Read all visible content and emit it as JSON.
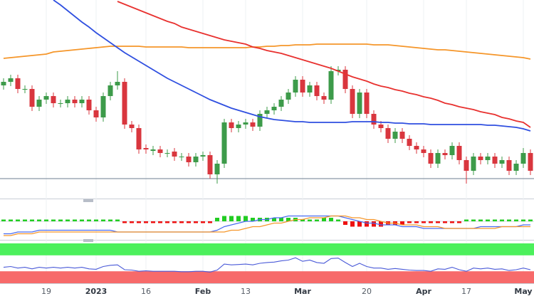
{
  "chart_data": {
    "type": "candlestick",
    "categories": [
      null,
      null,
      null,
      null,
      null,
      null,
      "19",
      null,
      null,
      null,
      null,
      null,
      null,
      "2023",
      null,
      null,
      null,
      null,
      null,
      null,
      "16",
      null,
      null,
      null,
      null,
      null,
      null,
      null,
      "Feb",
      null,
      null,
      null,
      null,
      null,
      "13",
      null,
      null,
      null,
      null,
      null,
      null,
      null,
      "Mar",
      null,
      null,
      null,
      null,
      null,
      null,
      null,
      null,
      "20",
      null,
      null,
      null,
      null,
      null,
      null,
      null,
      "Apr",
      null,
      null,
      null,
      null,
      null,
      "17",
      null,
      null,
      null,
      null,
      null,
      null,
      null,
      "May",
      null
    ],
    "open": [
      158,
      163,
      168,
      153,
      153,
      128,
      138,
      143,
      133,
      133,
      138,
      133,
      138,
      123,
      113,
      143,
      158,
      163,
      103,
      98,
      70,
      66,
      68,
      63,
      65,
      58,
      58,
      50,
      58,
      60,
      33,
      48,
      106,
      98,
      103,
      106,
      100,
      118,
      123,
      128,
      138,
      148,
      166,
      148,
      158,
      143,
      138,
      178,
      180,
      153,
      118,
      148,
      118,
      103,
      98,
      83,
      93,
      83,
      73,
      68,
      63,
      48,
      63,
      60,
      73,
      53,
      38,
      58,
      53,
      58,
      48,
      53,
      38,
      48,
      63
    ],
    "high": [
      168,
      173,
      173,
      158,
      158,
      143,
      148,
      148,
      138,
      143,
      143,
      143,
      143,
      128,
      148,
      163,
      178,
      168,
      108,
      103,
      75,
      73,
      73,
      68,
      70,
      63,
      63,
      63,
      65,
      65,
      53,
      111,
      111,
      108,
      111,
      111,
      123,
      128,
      133,
      143,
      153,
      171,
      171,
      163,
      163,
      148,
      185,
      185,
      185,
      158,
      153,
      153,
      123,
      108,
      103,
      98,
      98,
      88,
      78,
      73,
      68,
      68,
      68,
      78,
      78,
      58,
      63,
      63,
      63,
      63,
      58,
      58,
      53,
      70,
      68
    ],
    "low": [
      152,
      157,
      147,
      147,
      122,
      122,
      132,
      127,
      127,
      127,
      127,
      127,
      117,
      107,
      107,
      137,
      152,
      97,
      92,
      62,
      62,
      60,
      57,
      57,
      52,
      52,
      44,
      44,
      52,
      27,
      20,
      42,
      92,
      92,
      97,
      94,
      94,
      112,
      117,
      122,
      132,
      142,
      142,
      142,
      137,
      132,
      132,
      172,
      147,
      112,
      112,
      112,
      97,
      92,
      77,
      77,
      77,
      67,
      62,
      57,
      42,
      42,
      54,
      54,
      47,
      20,
      32,
      47,
      47,
      42,
      42,
      32,
      32,
      42,
      32
    ],
    "close": [
      163,
      168,
      153,
      153,
      128,
      138,
      143,
      133,
      133,
      138,
      133,
      138,
      123,
      113,
      143,
      158,
      163,
      103,
      98,
      68,
      68,
      68,
      63,
      63,
      58,
      58,
      50,
      58,
      60,
      33,
      48,
      106,
      98,
      103,
      106,
      100,
      118,
      123,
      128,
      138,
      148,
      166,
      148,
      158,
      143,
      138,
      178,
      180,
      153,
      118,
      148,
      118,
      103,
      98,
      83,
      93,
      83,
      73,
      68,
      63,
      48,
      63,
      60,
      73,
      53,
      38,
      58,
      53,
      58,
      48,
      53,
      38,
      48,
      63,
      38
    ],
    "up_color": "#3d9b4a",
    "down_color": "#d9363e",
    "ylim": [
      0,
      278
    ],
    "hline": 27,
    "hline_color": "#8a97a6",
    "lines": [
      {
        "color": "#f5962a",
        "values": [
          196,
          197,
          198,
          199,
          200,
          201,
          202,
          205,
          206,
          207,
          208,
          209,
          210,
          211,
          212,
          213,
          213,
          213,
          213,
          213,
          212,
          212,
          212,
          212,
          212,
          212,
          211,
          211,
          211,
          211,
          211,
          211,
          211,
          211,
          211,
          212,
          212,
          213,
          213,
          214,
          214,
          215,
          215,
          215,
          216,
          216,
          216,
          216,
          216,
          216,
          216,
          216,
          215,
          215,
          215,
          214,
          213,
          212,
          211,
          210,
          209,
          208,
          208,
          207,
          206,
          205,
          204,
          203,
          202,
          201,
          200,
          199,
          198,
          197,
          195
        ]
      },
      {
        "color": "#e8312f",
        "values": [
          null,
          null,
          null,
          null,
          null,
          null,
          null,
          null,
          null,
          null,
          null,
          null,
          null,
          null,
          null,
          null,
          276,
          272,
          268,
          264,
          260,
          256,
          252,
          248,
          245,
          240,
          237,
          234,
          231,
          228,
          225,
          222,
          220,
          218,
          216,
          212,
          210,
          207,
          205,
          203,
          200,
          197,
          194,
          191,
          188,
          185,
          182,
          178,
          174,
          170,
          167,
          164,
          160,
          157,
          155,
          152,
          150,
          147,
          145,
          142,
          140,
          137,
          133,
          131,
          128,
          126,
          124,
          121,
          119,
          117,
          113,
          111,
          108,
          106,
          99
        ]
      },
      {
        "color": "#2f4fe0",
        "values": [
          null,
          null,
          null,
          null,
          null,
          null,
          null,
          278,
          271,
          263,
          255,
          247,
          240,
          232,
          225,
          218,
          211,
          204,
          198,
          192,
          186,
          180,
          174,
          168,
          163,
          158,
          153,
          148,
          143,
          138,
          134,
          130,
          126,
          123,
          120,
          117,
          114,
          112,
          110,
          109,
          108,
          107,
          107,
          106,
          106,
          106,
          106,
          106,
          106,
          107,
          107,
          107,
          107,
          106,
          106,
          105,
          105,
          104,
          104,
          104,
          103,
          103,
          103,
          103,
          103,
          103,
          103,
          103,
          102,
          102,
          101,
          100,
          99,
          97,
          94
        ]
      }
    ],
    "macd": {
      "ylim": [
        -10,
        10
      ],
      "histogram": [
        1,
        1,
        1,
        1,
        1,
        1,
        1,
        1,
        1,
        1,
        1,
        1,
        1,
        1,
        1,
        1,
        1,
        -1,
        -1,
        -1,
        -1,
        -1,
        -1,
        -1,
        -1,
        -1,
        -1,
        -1,
        -1,
        -1,
        2,
        3,
        3,
        3,
        3,
        2,
        2,
        2,
        2,
        2,
        2,
        2,
        1,
        1,
        1,
        2,
        2,
        1,
        -2,
        -3,
        -3,
        -3,
        -3,
        -3,
        -2,
        -2,
        -2,
        -1,
        -1,
        -1,
        -1,
        -1,
        -1,
        -1,
        -1,
        1,
        1,
        1,
        1,
        1,
        1,
        1,
        1,
        1,
        1
      ],
      "up_color": "#22cc22",
      "down_color": "#ee1111",
      "lines": [
        {
          "color": "#4a6cf0",
          "values": [
            -7,
            -7,
            -6,
            -6,
            -6,
            -5,
            -5,
            -5,
            -5,
            -5,
            -5,
            -5,
            -5,
            -5,
            -5,
            -5,
            -6,
            -6,
            -6,
            -6,
            -6,
            -6,
            -6,
            -6,
            -6,
            -6,
            -6,
            -6,
            -6,
            -6,
            -5,
            -3,
            -2,
            -1,
            0,
            0,
            1,
            1,
            2,
            2,
            3,
            3,
            3,
            3,
            3,
            3,
            3,
            3,
            2,
            1,
            0,
            -1,
            -1,
            -2,
            -2,
            -2,
            -3,
            -3,
            -3,
            -4,
            -4,
            -4,
            -4,
            -4,
            -4,
            -4,
            -4,
            -3,
            -3,
            -3,
            -3,
            -3,
            -3,
            -2,
            -2
          ]
        },
        {
          "color": "#f5962a",
          "values": [
            -8,
            -8,
            -7,
            -7,
            -7,
            -6,
            -6,
            -6,
            -6,
            -6,
            -6,
            -6,
            -6,
            -6,
            -6,
            -6,
            -6,
            -6,
            -6,
            -6,
            -6,
            -6,
            -6,
            -6,
            -6,
            -6,
            -6,
            -6,
            -6,
            -6,
            -6,
            -6,
            -5,
            -5,
            -4,
            -3,
            -3,
            -2,
            -1,
            -1,
            0,
            1,
            1,
            2,
            2,
            2,
            3,
            3,
            3,
            2,
            2,
            1,
            1,
            0,
            -1,
            -1,
            -2,
            -2,
            -2,
            -3,
            -3,
            -3,
            -4,
            -4,
            -4,
            -4,
            -4,
            -4,
            -4,
            -4,
            -3,
            -3,
            -3,
            -3,
            -3
          ]
        }
      ]
    },
    "rsi": {
      "ylim": [
        0,
        100
      ],
      "upper": 70,
      "lower": 30,
      "upper_color": "#4cf05c",
      "lower_color": "#f76a6a",
      "color": "#4a5ad8",
      "values": [
        40,
        42,
        38,
        40,
        36,
        40,
        38,
        40,
        38,
        40,
        38,
        40,
        36,
        35,
        42,
        45,
        46,
        34,
        33,
        30,
        31,
        30,
        30,
        30,
        30,
        29,
        29,
        30,
        30,
        28,
        33,
        48,
        46,
        47,
        48,
        46,
        50,
        52,
        53,
        56,
        58,
        64,
        55,
        58,
        52,
        50,
        62,
        63,
        52,
        42,
        50,
        42,
        38,
        38,
        35,
        37,
        35,
        33,
        32,
        32,
        30,
        36,
        35,
        40,
        34,
        30,
        38,
        36,
        38,
        35,
        36,
        32,
        34,
        38,
        34
      ]
    }
  }
}
